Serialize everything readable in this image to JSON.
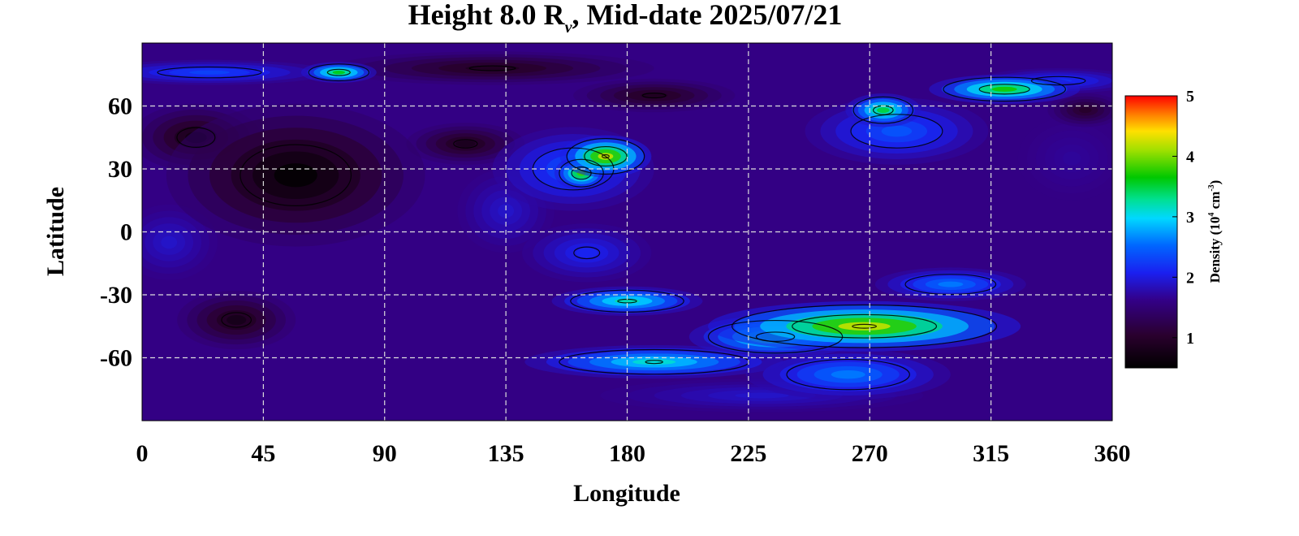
{
  "chart_data": {
    "type": "heatmap",
    "title": {
      "prefix": "Height 8.0 R",
      "subscript": "v",
      "suffix": ", Mid-date 2025/07/21"
    },
    "xlabel": "Longitude",
    "ylabel": "Latitude",
    "xlim": [
      0,
      360
    ],
    "ylim": [
      -90,
      90
    ],
    "x_ticks": [
      {
        "value": 0,
        "label": "0"
      },
      {
        "value": 45,
        "label": "45"
      },
      {
        "value": 90,
        "label": "90"
      },
      {
        "value": 135,
        "label": "135"
      },
      {
        "value": 180,
        "label": "180"
      },
      {
        "value": 225,
        "label": "225"
      },
      {
        "value": 270,
        "label": "270"
      },
      {
        "value": 315,
        "label": "315"
      },
      {
        "value": 360,
        "label": "360"
      }
    ],
    "y_ticks": [
      {
        "value": 60,
        "label": "60"
      },
      {
        "value": 30,
        "label": "30"
      },
      {
        "value": 0,
        "label": "0"
      },
      {
        "value": -30,
        "label": "-30"
      },
      {
        "value": -60,
        "label": "-60"
      }
    ],
    "grid": true,
    "background_value": 1.6,
    "colorbar": {
      "label_prefix": "Density (10",
      "label_exp1": "4",
      "label_mid": " cm",
      "label_exp2": "-3",
      "label_suffix": ")",
      "range": [
        0.5,
        5
      ],
      "ticks": [
        {
          "value": 1,
          "label": "1"
        },
        {
          "value": 2,
          "label": "2"
        },
        {
          "value": 3,
          "label": "3"
        },
        {
          "value": 4,
          "label": "4"
        },
        {
          "value": 5,
          "label": "5"
        }
      ],
      "colors": [
        {
          "stop": 0.0,
          "color": "#000000"
        },
        {
          "stop": 0.12,
          "color": "#2a002e"
        },
        {
          "stop": 0.25,
          "color": "#330088"
        },
        {
          "stop": 0.35,
          "color": "#1a20f0"
        },
        {
          "stop": 0.45,
          "color": "#0066ff"
        },
        {
          "stop": 0.55,
          "color": "#00d8ff"
        },
        {
          "stop": 0.62,
          "color": "#00e090"
        },
        {
          "stop": 0.7,
          "color": "#00c800"
        },
        {
          "stop": 0.8,
          "color": "#a0e000"
        },
        {
          "stop": 0.87,
          "color": "#ffe000"
        },
        {
          "stop": 0.93,
          "color": "#ff8000"
        },
        {
          "stop": 1.0,
          "color": "#ff0000"
        }
      ]
    },
    "features": [
      {
        "lon": 57,
        "lat": 27,
        "value": 0.55,
        "width": 48,
        "height": 34
      },
      {
        "lon": 20,
        "lat": 45,
        "value": 0.75,
        "width": 24,
        "height": 16
      },
      {
        "lon": 35,
        "lat": -42,
        "value": 0.8,
        "width": 22,
        "height": 14
      },
      {
        "lon": 120,
        "lat": 42,
        "value": 0.85,
        "width": 22,
        "height": 10
      },
      {
        "lon": 190,
        "lat": 65,
        "value": 0.9,
        "width": 30,
        "height": 8
      },
      {
        "lon": 130,
        "lat": 78,
        "value": 0.9,
        "width": 60,
        "height": 8
      },
      {
        "lon": 350,
        "lat": 58,
        "value": 1.0,
        "width": 14,
        "height": 8
      },
      {
        "lon": 25,
        "lat": 76,
        "value": 2.3,
        "width": 45,
        "height": 6
      },
      {
        "lon": 73,
        "lat": 76,
        "value": 3.6,
        "width": 14,
        "height": 5
      },
      {
        "lon": 160,
        "lat": 30,
        "value": 2.4,
        "width": 30,
        "height": 20
      },
      {
        "lon": 172,
        "lat": 36,
        "value": 4.2,
        "width": 17,
        "height": 10
      },
      {
        "lon": 163,
        "lat": 28,
        "value": 3.8,
        "width": 10,
        "height": 8
      },
      {
        "lon": 280,
        "lat": 48,
        "value": 2.4,
        "width": 34,
        "height": 16
      },
      {
        "lon": 275,
        "lat": 58,
        "value": 3.5,
        "width": 14,
        "height": 8
      },
      {
        "lon": 320,
        "lat": 68,
        "value": 3.7,
        "width": 28,
        "height": 7
      },
      {
        "lon": 340,
        "lat": 72,
        "value": 2.2,
        "width": 30,
        "height": 6
      },
      {
        "lon": 165,
        "lat": -10,
        "value": 2.1,
        "width": 24,
        "height": 14
      },
      {
        "lon": 180,
        "lat": -33,
        "value": 3.2,
        "width": 28,
        "height": 7
      },
      {
        "lon": 190,
        "lat": -62,
        "value": 3.1,
        "width": 48,
        "height": 8
      },
      {
        "lon": 268,
        "lat": -45,
        "value": 4.2,
        "width": 58,
        "height": 12
      },
      {
        "lon": 235,
        "lat": -50,
        "value": 3.4,
        "width": 32,
        "height": 10
      },
      {
        "lon": 262,
        "lat": -68,
        "value": 2.6,
        "width": 38,
        "height": 12
      },
      {
        "lon": 300,
        "lat": -25,
        "value": 2.6,
        "width": 28,
        "height": 8
      },
      {
        "lon": 230,
        "lat": -78,
        "value": 1.9,
        "width": 60,
        "height": 8
      },
      {
        "lon": 135,
        "lat": 10,
        "value": 1.9,
        "width": 18,
        "height": 20
      },
      {
        "lon": 10,
        "lat": -5,
        "value": 1.9,
        "width": 18,
        "height": 18
      },
      {
        "lon": 345,
        "lat": 35,
        "value": 1.7,
        "width": 20,
        "height": 20
      }
    ],
    "contour_levels": [
      1,
      2,
      3,
      4
    ]
  }
}
